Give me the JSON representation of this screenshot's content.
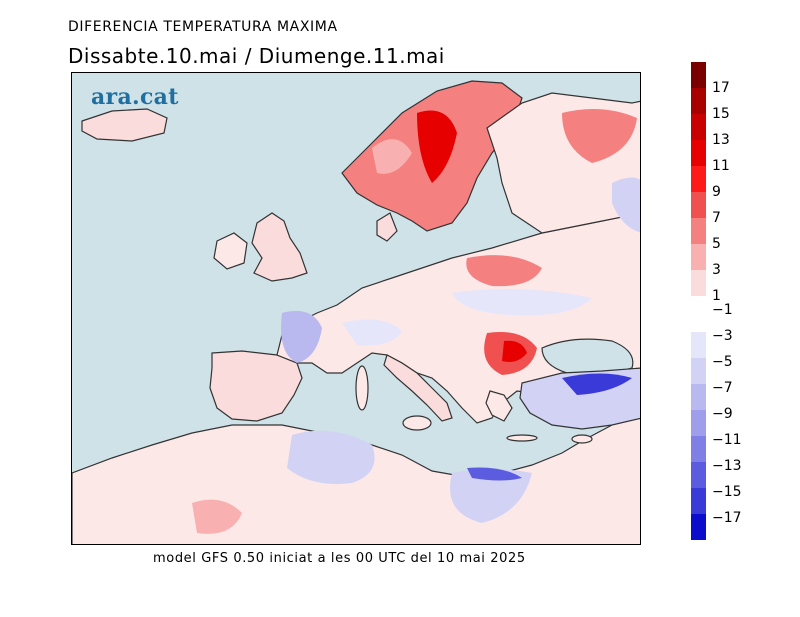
{
  "header": {
    "title": "DIFERENCIA TEMPERATURA MAXIMA",
    "subtitle": "Dissabte.10.mai / Diumenge.11.mai"
  },
  "logo": {
    "text": "ara.cat",
    "color": "#1f6fa0"
  },
  "footer": {
    "text": "model GFS 0.50 iniciat a les 00 UTC del 10 mai 2025"
  },
  "map": {
    "region": "Europe",
    "sea_color": "#cfe2e8",
    "coastline_color": "#333333"
  },
  "legend": {
    "positive_labels": [
      "17",
      "15",
      "13",
      "11",
      "9",
      "7",
      "5",
      "3",
      "1"
    ],
    "negative_labels": [
      "−1",
      "−3",
      "−5",
      "−7",
      "−9",
      "−11",
      "−13",
      "−15",
      "−17"
    ],
    "positive_colors": [
      "#7a0000",
      "#a80000",
      "#c80000",
      "#e60000",
      "#ff1a1a",
      "#f05050",
      "#f58080",
      "#f8b0b0",
      "#fbdcdc"
    ],
    "negative_colors": [
      "#ffffff",
      "#e6e6fa",
      "#d2d2f5",
      "#b9b9f0",
      "#9e9eeb",
      "#7f7fe6",
      "#5c5ce0",
      "#3a3ad8",
      "#0c0ccc"
    ]
  }
}
